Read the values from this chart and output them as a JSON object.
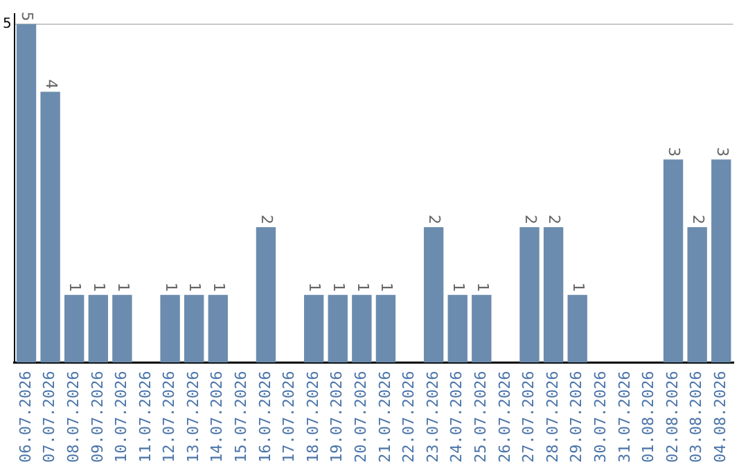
{
  "chart_data": {
    "type": "bar",
    "categories": [
      "06.07.2026",
      "07.07.2026",
      "08.07.2026",
      "09.07.2026",
      "10.07.2026",
      "11.07.2026",
      "12.07.2026",
      "13.07.2026",
      "14.07.2026",
      "15.07.2026",
      "16.07.2026",
      "17.07.2026",
      "18.07.2026",
      "19.07.2026",
      "20.07.2026",
      "21.07.2026",
      "22.07.2026",
      "23.07.2026",
      "24.07.2026",
      "25.07.2026",
      "26.07.2026",
      "27.07.2026",
      "28.07.2026",
      "29.07.2026",
      "30.07.2026",
      "31.07.2026",
      "01.08.2026",
      "02.08.2026",
      "03.08.2026",
      "04.08.2026"
    ],
    "values": [
      5,
      4,
      1,
      1,
      1,
      0,
      1,
      1,
      1,
      0,
      2,
      0,
      1,
      1,
      1,
      1,
      0,
      2,
      1,
      1,
      0,
      2,
      2,
      1,
      0,
      0,
      0,
      3,
      2,
      3
    ],
    "value_labels": [
      "5",
      "4",
      "1",
      "1",
      "1",
      null,
      "1",
      "1",
      "1",
      null,
      "2",
      null,
      "1",
      "1",
      "1",
      "1",
      null,
      "2",
      "1",
      "1",
      null,
      "2",
      "2",
      "1",
      null,
      null,
      null,
      "3",
      "2",
      "3"
    ],
    "color": "#6b8cae",
    "ylim": [
      0,
      5.15
    ],
    "yticks": [
      5
    ],
    "grid": "y"
  }
}
